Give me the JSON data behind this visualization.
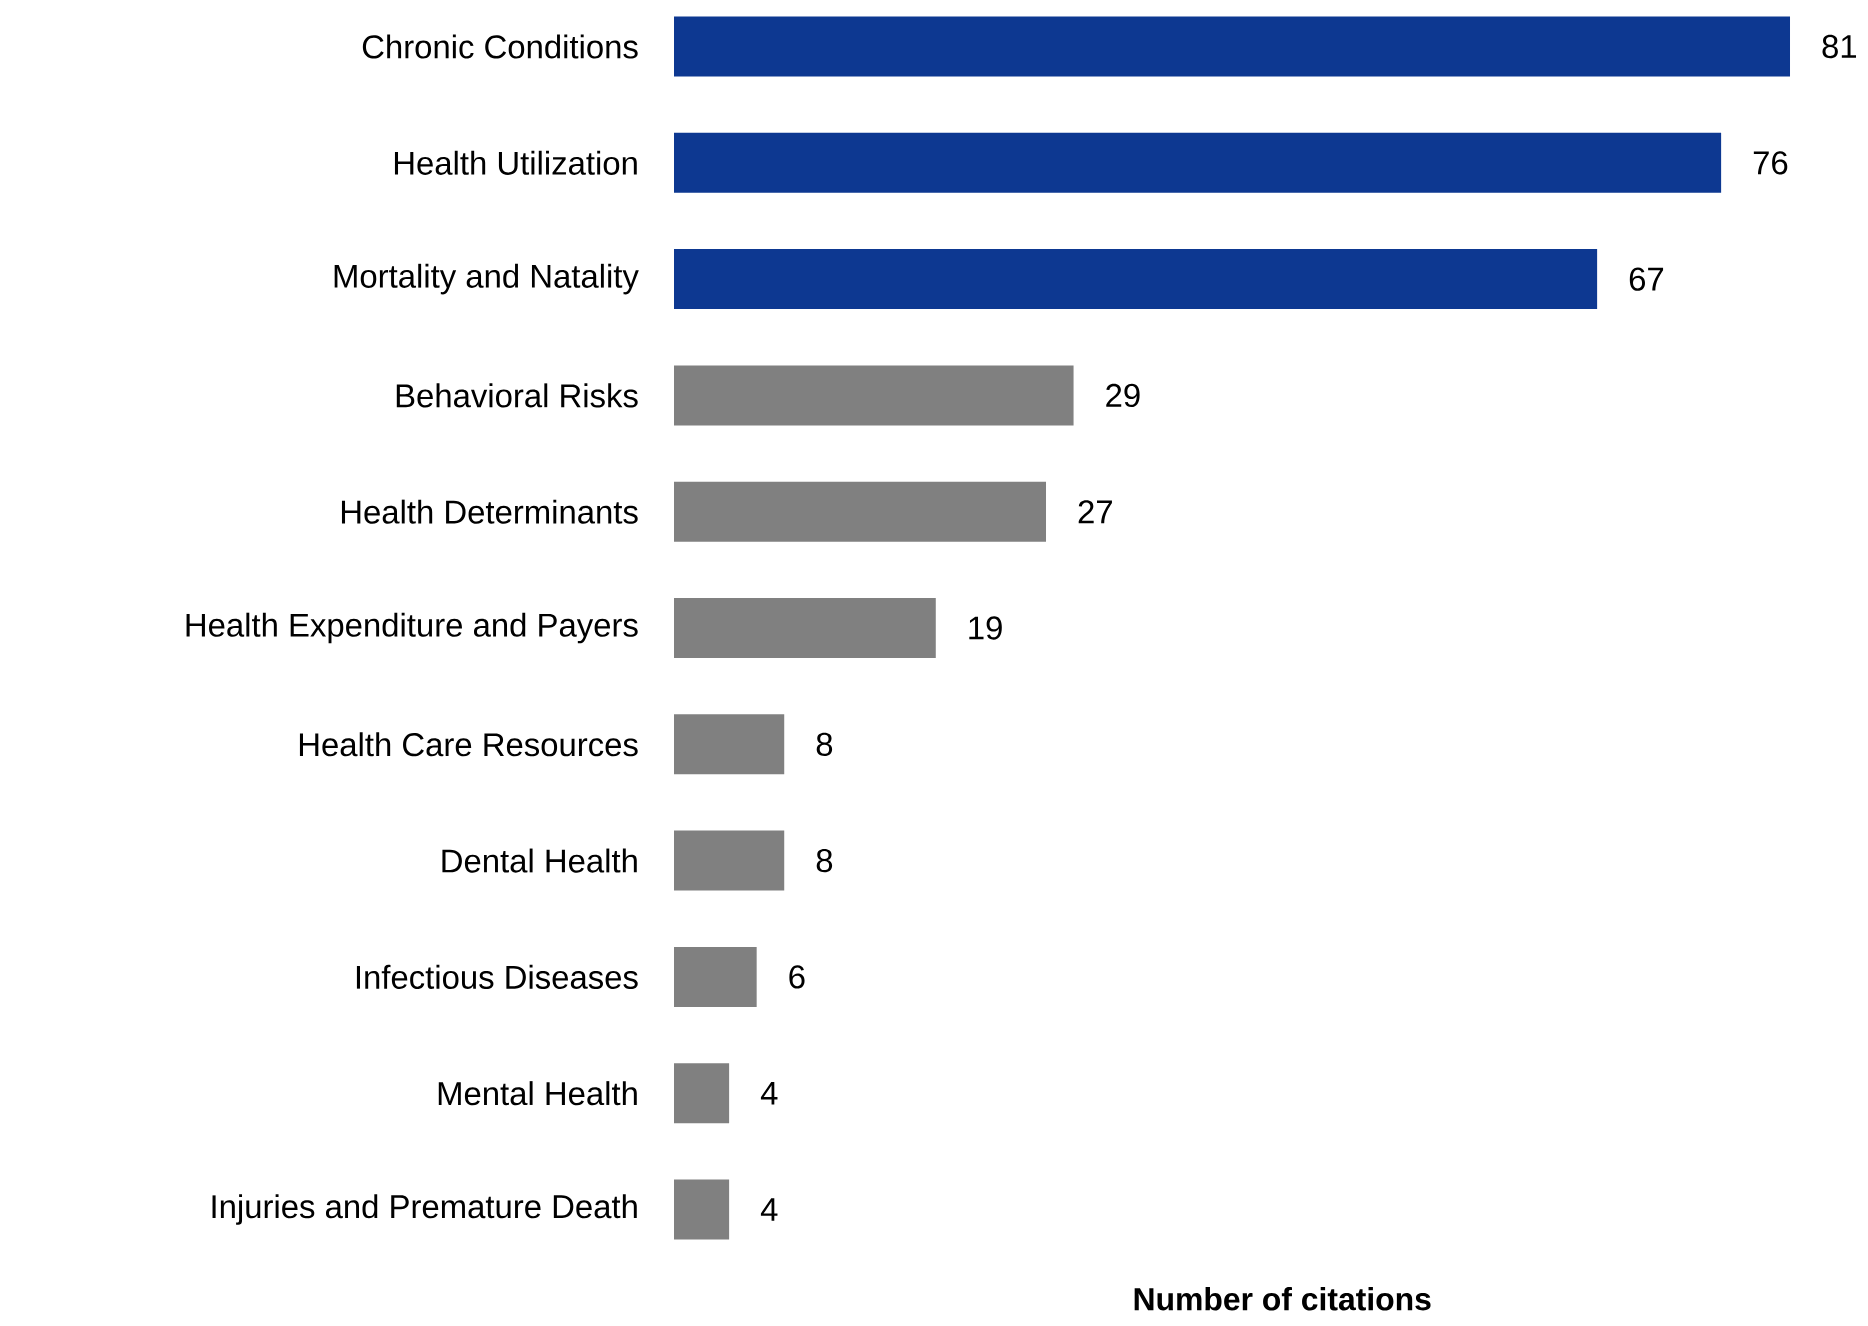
{
  "chart_data": {
    "type": "bar",
    "orientation": "horizontal",
    "xlabel": "Number of citations",
    "categories": [
      "Chronic Conditions",
      "Health Utilization",
      "Mortality and Natality",
      "Behavioral Risks",
      "Health Determinants",
      "Health Expenditure and Payers",
      "Health Care Resources",
      "Dental Health",
      "Infectious Diseases",
      "Mental Health",
      "Injuries and Premature Death"
    ],
    "values": [
      81,
      76,
      67,
      29,
      27,
      19,
      8,
      8,
      6,
      4,
      4
    ],
    "value_labels": [
      "81",
      "76",
      "67",
      "29",
      "27",
      "19",
      "8",
      "8",
      "6",
      "4",
      "4"
    ],
    "colors": [
      "#0d3891",
      "#0d3891",
      "#0d3891",
      "#808080",
      "#808080",
      "#808080",
      "#808080",
      "#808080",
      "#808080",
      "#808080",
      "#808080"
    ]
  }
}
